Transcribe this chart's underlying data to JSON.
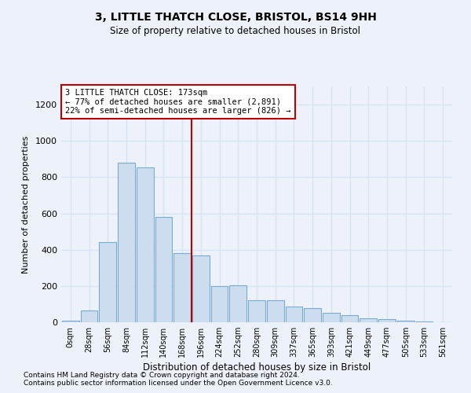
{
  "title1": "3, LITTLE THATCH CLOSE, BRISTOL, BS14 9HH",
  "title2": "Size of property relative to detached houses in Bristol",
  "xlabel": "Distribution of detached houses by size in Bristol",
  "ylabel": "Number of detached properties",
  "bar_labels": [
    "0sqm",
    "28sqm",
    "56sqm",
    "84sqm",
    "112sqm",
    "140sqm",
    "168sqm",
    "196sqm",
    "224sqm",
    "252sqm",
    "280sqm",
    "309sqm",
    "337sqm",
    "365sqm",
    "393sqm",
    "421sqm",
    "449sqm",
    "477sqm",
    "505sqm",
    "533sqm",
    "561sqm"
  ],
  "bar_values": [
    10,
    65,
    440,
    880,
    855,
    580,
    380,
    370,
    200,
    205,
    120,
    120,
    85,
    80,
    50,
    38,
    20,
    18,
    10,
    5,
    1
  ],
  "bar_color": "#ccddf0",
  "bar_edge_color": "#7aaad0",
  "vline_x_idx": 7,
  "vline_color": "#bb0000",
  "annotation_text": "3 LITTLE THATCH CLOSE: 173sqm\n← 77% of detached houses are smaller (2,891)\n22% of semi-detached houses are larger (826) →",
  "annotation_box_color": "#ffffff",
  "annotation_box_edge": "#bb0000",
  "ylim": [
    0,
    1300
  ],
  "yticks": [
    0,
    200,
    400,
    600,
    800,
    1000,
    1200
  ],
  "footnote1": "Contains HM Land Registry data © Crown copyright and database right 2024.",
  "footnote2": "Contains public sector information licensed under the Open Government Licence v3.0.",
  "bg_color": "#edf2fa",
  "grid_color": "#d8e4f0"
}
